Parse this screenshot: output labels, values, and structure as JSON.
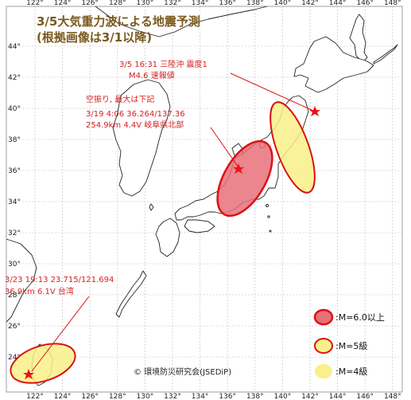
{
  "title": {
    "line1": "3/5大気重力波による地震予測",
    "line2": "(根拠画像は3/1以降)"
  },
  "axes": {
    "lon_ticks": [
      "122°",
      "124°",
      "126°",
      "128°",
      "130°",
      "132°",
      "134°",
      "136°",
      "138°",
      "140°",
      "142°",
      "144°",
      "146°",
      "148°"
    ],
    "lat_ticks": [
      "44°",
      "42°",
      "40°",
      "38°",
      "36°",
      "34°",
      "32°",
      "30°",
      "28°",
      "26°",
      "24°"
    ]
  },
  "annotations": {
    "sanriku": {
      "line1": "3/5 16:31 三陸沖 震度1",
      "line2": "M4.6 速報値"
    },
    "gifu": {
      "line1": "空振り, 最大は下記",
      "line2": "3/19 4:06  36.264/137.36",
      "line3": "254.9km 4.4V 岐阜県北部"
    },
    "taiwan": {
      "line1": "3/23 19:13 23.715/121.694",
      "line2": "36.9km 6.1V 台湾"
    }
  },
  "legend": {
    "m6": {
      "label": ":M=6.0以上",
      "fill": "#e8707a",
      "stroke": "#dd1111"
    },
    "m5": {
      "label": ":M=5級",
      "fill": "#f8f08a",
      "stroke": "#dd1111"
    },
    "m4": {
      "label": ":M=4級",
      "fill": "#f8f08a",
      "stroke": "none"
    }
  },
  "credit": "© 環境防災研究会(JSEDiP)",
  "colors": {
    "accent": "#dd1111",
    "title": "#7a5a1e",
    "grid": "#bbbbbb"
  }
}
